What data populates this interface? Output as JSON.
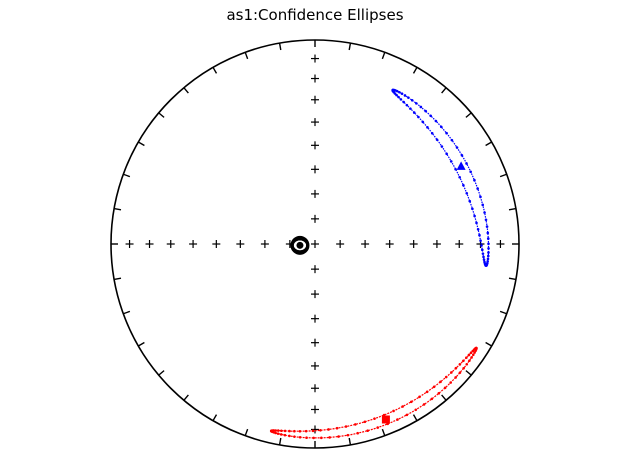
{
  "chart_data": {
    "type": "scatter",
    "title": "as1:Confidence Ellipses",
    "projection": "equal-area stereonet",
    "grid": "cross of tick marks at 10° dip intervals",
    "circle_ticks_every_deg": 10,
    "colors": {
      "frame": "#000000",
      "blue": "#0000ff",
      "red": "#ff0000"
    },
    "series": [
      {
        "color": "#0000ff",
        "hemisphere": "lower",
        "mean": {
          "dec": 62,
          "inc": 20,
          "marker": "triangle"
        },
        "ellipse": {
          "semi_major_deg": 38,
          "semi_minor_deg": 3
        }
      },
      {
        "color": "#ff0000",
        "hemisphere": "upper",
        "mean": {
          "dec": 158,
          "inc": -8,
          "marker": "square"
        },
        "ellipse": {
          "semi_major_deg": 40,
          "semi_minor_deg": 2.5
        }
      },
      {
        "color": "#000000",
        "hemisphere": "lower",
        "mean": {
          "dec": 265,
          "inc": 84,
          "marker": "circle"
        },
        "ellipse": {
          "semi_major_deg": 3,
          "semi_minor_deg": 2.5
        }
      }
    ]
  }
}
